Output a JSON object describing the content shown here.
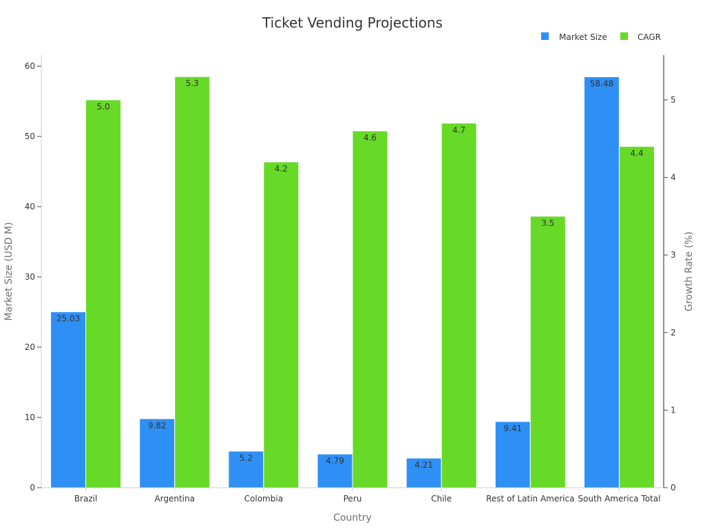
{
  "chart_data": {
    "type": "bar",
    "title": "Ticket Vending Projections",
    "xlabel": "Country",
    "ylabel": "Market Size (USD M)",
    "y2label": "Growth Rate (%)",
    "categories": [
      "Brazil",
      "Argentina",
      "Colombia",
      "Peru",
      "Chile",
      "Rest of Latin America",
      "South America Total"
    ],
    "series": [
      {
        "name": "Market Size",
        "axis": "left",
        "color": "#2e90f5",
        "values": [
          25.03,
          9.82,
          5.2,
          4.79,
          4.21,
          9.41,
          58.48
        ],
        "labels": [
          "25.03",
          "9.82",
          "5.2",
          "4.79",
          "4.21",
          "9.41",
          "58.48"
        ]
      },
      {
        "name": "CAGR",
        "axis": "right",
        "color": "#66da26",
        "values": [
          5.0,
          5.3,
          4.2,
          4.6,
          4.7,
          3.5,
          4.4
        ],
        "labels": [
          "5.0",
          "5.3",
          "4.2",
          "4.6",
          "4.7",
          "3.5",
          "4.4"
        ]
      }
    ],
    "ylim": [
      0,
      61.4
    ],
    "y2lim": [
      0,
      5.56
    ],
    "yticks": [
      0,
      10,
      20,
      30,
      40,
      50,
      60
    ],
    "y2ticks": [
      0,
      1,
      2,
      3,
      4,
      5
    ],
    "legend_position": "top-right",
    "grid": false
  }
}
